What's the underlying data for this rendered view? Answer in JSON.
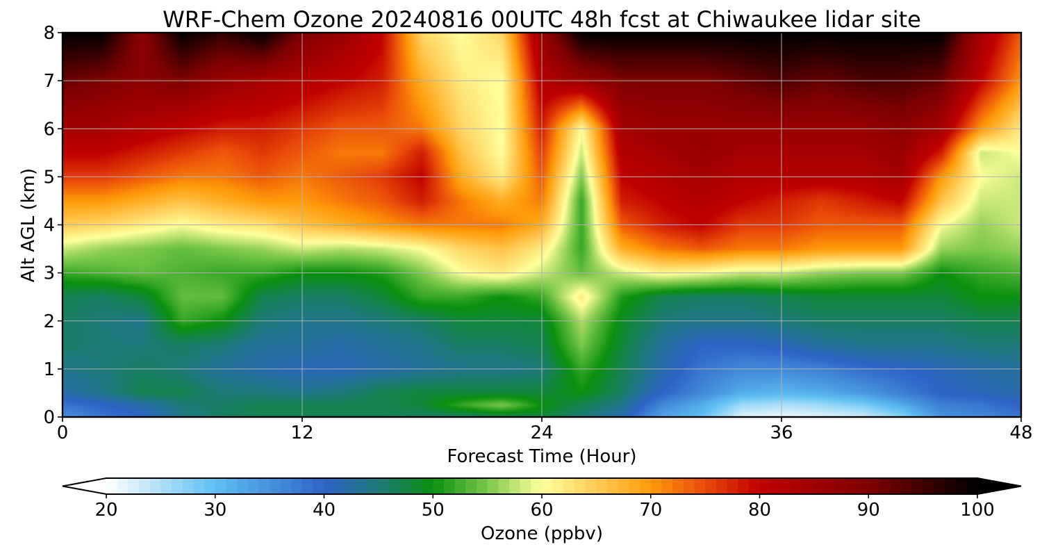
{
  "chart_data": {
    "type": "heatmap",
    "title": "WRF-Chem Ozone  20240816 00UTC 48h fcst at Chiwaukee lidar site",
    "xlabel": "Forecast Time (Hour)",
    "ylabel": "Alt AGL (km)",
    "xlim": [
      0,
      48
    ],
    "ylim": [
      0,
      8
    ],
    "x_ticks": [
      "0",
      "12",
      "24",
      "36",
      "48"
    ],
    "y_ticks": [
      "0",
      "1",
      "2",
      "3",
      "4",
      "5",
      "6",
      "7",
      "8"
    ],
    "grid": true,
    "colorbar": {
      "label": "Ozone  (ppbv)",
      "range": [
        20,
        100
      ],
      "ticks": [
        "20",
        "30",
        "40",
        "50",
        "60",
        "70",
        "80",
        "90",
        "100"
      ],
      "extend": "both",
      "stops": [
        {
          "v": 20,
          "color": "#ffffff"
        },
        {
          "v": 30,
          "color": "#5ec0f2"
        },
        {
          "v": 40,
          "color": "#2f63c8"
        },
        {
          "v": 45,
          "color": "#1d7a7a"
        },
        {
          "v": 50,
          "color": "#0a9010"
        },
        {
          "v": 55,
          "color": "#7cc84a"
        },
        {
          "v": 60,
          "color": "#ffff9c"
        },
        {
          "v": 65,
          "color": "#ffcc55"
        },
        {
          "v": 70,
          "color": "#ff9a0a"
        },
        {
          "v": 75,
          "color": "#e84a08"
        },
        {
          "v": 80,
          "color": "#c00000"
        },
        {
          "v": 90,
          "color": "#800000"
        },
        {
          "v": 100,
          "color": "#000000"
        }
      ]
    },
    "altitudes_km": [
      0,
      0.25,
      0.5,
      1,
      1.5,
      2,
      2.5,
      3,
      3.5,
      4,
      4.5,
      5,
      5.5,
      6,
      7,
      8
    ],
    "hours": [
      0,
      2,
      4,
      6,
      8,
      10,
      12,
      14,
      16,
      18,
      20,
      22,
      24,
      26,
      28,
      30,
      32,
      34,
      36,
      38,
      40,
      42,
      44,
      46,
      48
    ],
    "ozone_ppbv": [
      [
        35,
        38,
        40,
        44,
        46,
        47,
        47,
        47,
        47,
        46,
        46,
        47,
        48,
        45,
        42,
        33,
        30,
        22,
        21,
        22,
        23,
        27,
        35,
        36,
        38
      ],
      [
        38,
        40,
        42,
        45,
        46,
        47,
        47,
        47,
        47,
        48,
        52,
        55,
        50,
        47,
        44,
        36,
        32,
        26,
        25,
        26,
        28,
        32,
        37,
        38,
        40
      ],
      [
        42,
        44,
        47,
        47,
        45,
        45,
        44,
        45,
        47,
        48,
        48,
        48,
        48,
        50,
        46,
        40,
        36,
        32,
        31,
        32,
        34,
        37,
        40,
        41,
        42
      ],
      [
        44,
        45,
        46,
        45,
        43,
        42,
        41,
        41,
        42,
        43,
        44,
        44,
        45,
        52,
        47,
        42,
        38,
        36,
        36,
        37,
        39,
        40,
        41,
        42,
        43
      ],
      [
        46,
        45,
        45,
        46,
        45,
        43,
        43,
        42,
        43,
        44,
        46,
        46,
        47,
        55,
        48,
        43,
        40,
        40,
        41,
        43,
        44,
        44,
        44,
        45,
        45
      ],
      [
        46,
        45,
        44,
        52,
        50,
        45,
        44,
        44,
        45,
        46,
        48,
        48,
        48,
        57,
        49,
        45,
        44,
        44,
        45,
        46,
        46,
        46,
        46,
        47,
        47
      ],
      [
        47,
        46,
        48,
        54,
        54,
        47,
        46,
        46,
        48,
        52,
        52,
        50,
        52,
        62,
        51,
        47,
        46,
        46,
        47,
        48,
        48,
        48,
        48,
        50,
        50
      ],
      [
        52,
        53,
        54,
        53,
        52,
        52,
        50,
        50,
        51,
        55,
        60,
        62,
        58,
        54,
        58,
        61,
        60,
        58,
        58,
        56,
        55,
        55,
        50,
        52,
        53
      ],
      [
        58,
        56,
        55,
        54,
        55,
        56,
        58,
        57,
        58,
        60,
        64,
        66,
        62,
        52,
        68,
        72,
        74,
        72,
        72,
        70,
        70,
        70,
        56,
        55,
        56
      ],
      [
        65,
        64,
        62,
        60,
        62,
        63,
        66,
        68,
        70,
        72,
        72,
        72,
        68,
        52,
        74,
        78,
        80,
        76,
        76,
        74,
        74,
        74,
        60,
        56,
        58
      ],
      [
        70,
        70,
        68,
        66,
        68,
        70,
        70,
        72,
        74,
        78,
        72,
        68,
        72,
        52,
        78,
        80,
        82,
        80,
        78,
        76,
        78,
        80,
        66,
        58,
        58
      ],
      [
        76,
        76,
        74,
        72,
        72,
        74,
        72,
        74,
        76,
        80,
        68,
        62,
        74,
        55,
        80,
        82,
        84,
        82,
        82,
        82,
        82,
        84,
        70,
        60,
        58
      ],
      [
        80,
        80,
        78,
        76,
        74,
        76,
        74,
        72,
        72,
        78,
        66,
        60,
        76,
        58,
        82,
        84,
        86,
        84,
        84,
        84,
        84,
        86,
        78,
        58,
        60
      ],
      [
        84,
        84,
        82,
        80,
        78,
        78,
        76,
        74,
        74,
        72,
        64,
        60,
        78,
        60,
        84,
        86,
        86,
        86,
        86,
        86,
        86,
        88,
        84,
        70,
        62
      ],
      [
        92,
        90,
        88,
        90,
        86,
        84,
        82,
        80,
        78,
        68,
        62,
        60,
        82,
        86,
        90,
        90,
        90,
        92,
        94,
        92,
        94,
        94,
        92,
        80,
        70
      ],
      [
        100,
        100,
        88,
        100,
        96,
        100,
        90,
        86,
        80,
        64,
        60,
        64,
        86,
        100,
        100,
        100,
        100,
        100,
        100,
        100,
        100,
        100,
        100,
        84,
        74
      ]
    ]
  }
}
